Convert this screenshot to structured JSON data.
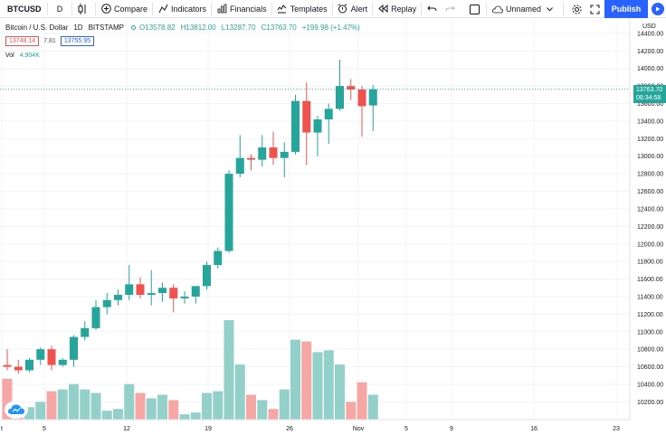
{
  "toolbar": {
    "symbol": "BTCUSD",
    "interval": "D",
    "compare": "Compare",
    "indicators": "Indicators",
    "financials": "Financials",
    "templates": "Templates",
    "alert": "Alert",
    "replay": "Replay",
    "layout_name": "Unnamed",
    "publish": "Publish"
  },
  "legend": {
    "title": "Bitcoin / U.S. Dollar",
    "interval": "1D",
    "exchange": "BITSTAMP",
    "open": "O13578.82",
    "high": "H13812.00",
    "low": "L13287.70",
    "close": "C13763.70",
    "change": "+199.98 (+1.47%)",
    "bid": "13748.14",
    "spread": "7.81",
    "ask": "13755.95",
    "vol_label": "Vol",
    "vol_value": "4.904K"
  },
  "price_axis": {
    "currency": "USD",
    "ticks": [
      "14400.00",
      "14200.00",
      "14000.00",
      "13800.00",
      "13600.00",
      "13400.00",
      "13200.00",
      "13000.00",
      "12800.00",
      "12600.00",
      "12400.00",
      "12200.00",
      "12000.00",
      "11800.00",
      "11600.00",
      "11400.00",
      "11200.00",
      "11000.00",
      "10800.00",
      "10600.00",
      "10400.00",
      "10200.00"
    ],
    "current_price": "13763.70",
    "countdown": "08:34:58"
  },
  "time_axis": {
    "labels": [
      "t",
      "5",
      "12",
      "19",
      "26",
      "Nov",
      "5",
      "9",
      "16",
      "23"
    ]
  },
  "colors": {
    "up": "#26a69a",
    "down": "#ef5350",
    "vol_up": "#92d0c9",
    "vol_down": "#f6a7a5"
  },
  "chart_data": {
    "type": "candlestick",
    "y_range": [
      10080,
      14420
    ],
    "candles": [
      {
        "o": 10620,
        "h": 10800,
        "l": 10560,
        "c": 10600
      },
      {
        "o": 10600,
        "h": 10680,
        "l": 10520,
        "c": 10560
      },
      {
        "o": 10560,
        "h": 10700,
        "l": 10540,
        "c": 10680
      },
      {
        "o": 10680,
        "h": 10820,
        "l": 10620,
        "c": 10800
      },
      {
        "o": 10800,
        "h": 10840,
        "l": 10560,
        "c": 10620
      },
      {
        "o": 10620,
        "h": 10700,
        "l": 10600,
        "c": 10680
      },
      {
        "o": 10680,
        "h": 10960,
        "l": 10600,
        "c": 10940
      },
      {
        "o": 10940,
        "h": 11120,
        "l": 10900,
        "c": 11040
      },
      {
        "o": 11040,
        "h": 11360,
        "l": 11020,
        "c": 11280
      },
      {
        "o": 11280,
        "h": 11440,
        "l": 11200,
        "c": 11360
      },
      {
        "o": 11360,
        "h": 11480,
        "l": 11300,
        "c": 11420
      },
      {
        "o": 11420,
        "h": 11760,
        "l": 11360,
        "c": 11540
      },
      {
        "o": 11540,
        "h": 11620,
        "l": 11380,
        "c": 11420
      },
      {
        "o": 11420,
        "h": 11700,
        "l": 11300,
        "c": 11440
      },
      {
        "o": 11440,
        "h": 11560,
        "l": 11340,
        "c": 11500
      },
      {
        "o": 11500,
        "h": 11540,
        "l": 11220,
        "c": 11380
      },
      {
        "o": 11380,
        "h": 11460,
        "l": 11320,
        "c": 11400
      },
      {
        "o": 11400,
        "h": 11500,
        "l": 11320,
        "c": 11520
      },
      {
        "o": 11520,
        "h": 11800,
        "l": 11480,
        "c": 11760
      },
      {
        "o": 11760,
        "h": 11960,
        "l": 11720,
        "c": 11920
      },
      {
        "o": 11920,
        "h": 12840,
        "l": 11900,
        "c": 12800
      },
      {
        "o": 12800,
        "h": 13240,
        "l": 12760,
        "c": 12980
      },
      {
        "o": 12980,
        "h": 13020,
        "l": 12840,
        "c": 12960
      },
      {
        "o": 12960,
        "h": 13240,
        "l": 12880,
        "c": 13100
      },
      {
        "o": 13100,
        "h": 13280,
        "l": 12900,
        "c": 12980
      },
      {
        "o": 12980,
        "h": 13160,
        "l": 12760,
        "c": 13050
      },
      {
        "o": 13050,
        "h": 13700,
        "l": 13020,
        "c": 13630
      },
      {
        "o": 13630,
        "h": 13840,
        "l": 12900,
        "c": 13270
      },
      {
        "o": 13270,
        "h": 13460,
        "l": 13000,
        "c": 13420
      },
      {
        "o": 13420,
        "h": 13600,
        "l": 13140,
        "c": 13540
      },
      {
        "o": 13540,
        "h": 14100,
        "l": 13520,
        "c": 13800
      },
      {
        "o": 13800,
        "h": 13880,
        "l": 13640,
        "c": 13760
      },
      {
        "o": 13760,
        "h": 13800,
        "l": 13220,
        "c": 13570
      },
      {
        "o": 13578.82,
        "h": 13812,
        "l": 13287.7,
        "c": 13763.7
      }
    ],
    "volumes": [
      2.3,
      0.2,
      0.7,
      1.0,
      1.6,
      1.7,
      2.0,
      1.7,
      1.5,
      0.5,
      0.6,
      2.0,
      1.5,
      1.2,
      1.4,
      1.1,
      0.3,
      0.4,
      1.5,
      1.6,
      5.6,
      3.1,
      1.4,
      1.1,
      0.6,
      1.7,
      4.5,
      4.4,
      3.8,
      3.9,
      3.1,
      1.0,
      2.1,
      1.4
    ]
  }
}
